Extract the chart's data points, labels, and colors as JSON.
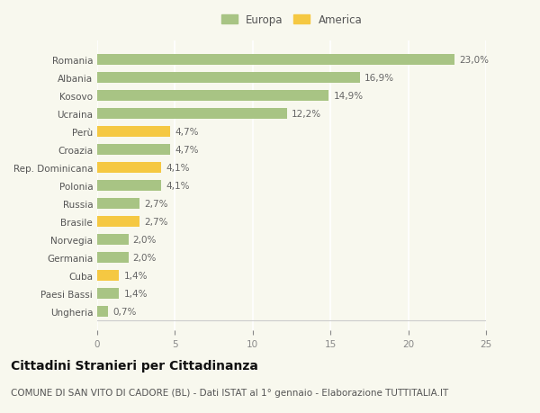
{
  "categories": [
    "Romania",
    "Albania",
    "Kosovo",
    "Ucraina",
    "Perù",
    "Croazia",
    "Rep. Dominicana",
    "Polonia",
    "Russia",
    "Brasile",
    "Norvegia",
    "Germania",
    "Cuba",
    "Paesi Bassi",
    "Ungheria"
  ],
  "values": [
    23.0,
    16.9,
    14.9,
    12.2,
    4.7,
    4.7,
    4.1,
    4.1,
    2.7,
    2.7,
    2.0,
    2.0,
    1.4,
    1.4,
    0.7
  ],
  "labels": [
    "23,0%",
    "16,9%",
    "14,9%",
    "12,2%",
    "4,7%",
    "4,7%",
    "4,1%",
    "4,1%",
    "2,7%",
    "2,7%",
    "2,0%",
    "2,0%",
    "1,4%",
    "1,4%",
    "0,7%"
  ],
  "continents": [
    "Europa",
    "Europa",
    "Europa",
    "Europa",
    "America",
    "Europa",
    "America",
    "Europa",
    "Europa",
    "America",
    "Europa",
    "Europa",
    "America",
    "Europa",
    "Europa"
  ],
  "color_europa": "#a8c484",
  "color_america": "#f5c842",
  "background_color": "#f8f8ee",
  "title": "Cittadini Stranieri per Cittadinanza",
  "subtitle": "COMUNE DI SAN VITO DI CADORE (BL) - Dati ISTAT al 1° gennaio - Elaborazione TUTTITALIA.IT",
  "xlim": [
    0,
    25
  ],
  "xticks": [
    0,
    5,
    10,
    15,
    20,
    25
  ],
  "legend_europa": "Europa",
  "legend_america": "America",
  "bar_height": 0.6,
  "title_fontsize": 10,
  "subtitle_fontsize": 7.5,
  "label_fontsize": 7.5,
  "tick_fontsize": 7.5,
  "legend_fontsize": 8.5
}
